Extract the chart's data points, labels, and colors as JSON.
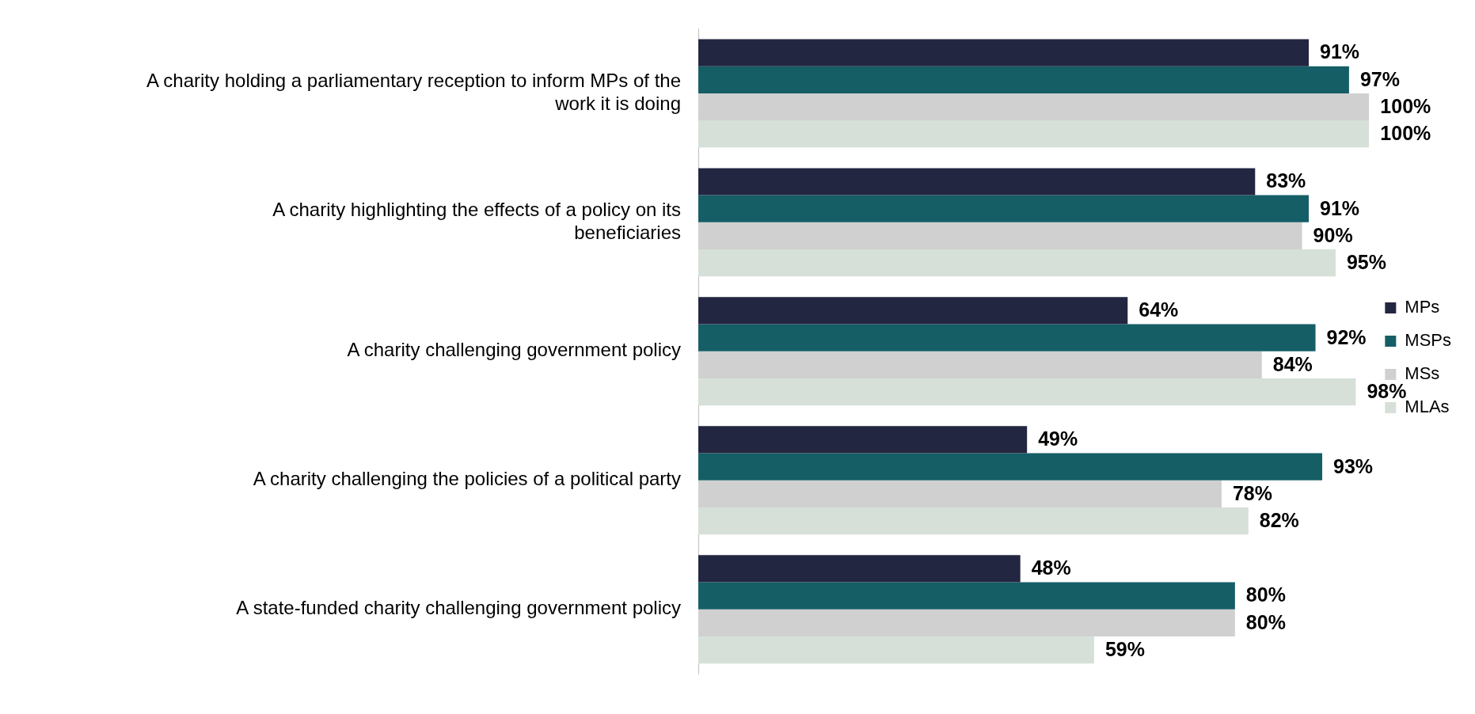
{
  "chart_data": {
    "type": "bar",
    "orientation": "horizontal",
    "legend": "right",
    "categories": [
      "A charity holding a parliamentary reception to inform MPs of the work it is doing",
      "A charity highlighting the effects of a policy on its beneficiaries",
      "A charity challenging government policy",
      "A charity challenging the policies of a political party",
      "A state-funded charity challenging government policy"
    ],
    "series": [
      {
        "name": "MPs",
        "color": "#222640",
        "values": [
          91,
          83,
          64,
          49,
          48
        ],
        "value_labels": [
          "91%",
          "83%",
          "64%",
          "49%",
          "48%"
        ]
      },
      {
        "name": "MSPs",
        "color": "#155e66",
        "values": [
          97,
          91,
          92,
          93,
          80
        ],
        "value_labels": [
          "97%",
          "91%",
          "92%",
          "93%",
          "80%"
        ]
      },
      {
        "name": "MSs",
        "color": "#d0d0d0",
        "values": [
          100,
          90,
          84,
          78,
          80
        ],
        "value_labels": [
          "100%",
          "90%",
          "84%",
          "78%",
          "80%"
        ]
      },
      {
        "name": "MLAs",
        "color": "#d6e0d8",
        "values": [
          100,
          95,
          98,
          82,
          59
        ],
        "value_labels": [
          "100%",
          "95%",
          "98%",
          "82%",
          "59%"
        ]
      }
    ]
  }
}
